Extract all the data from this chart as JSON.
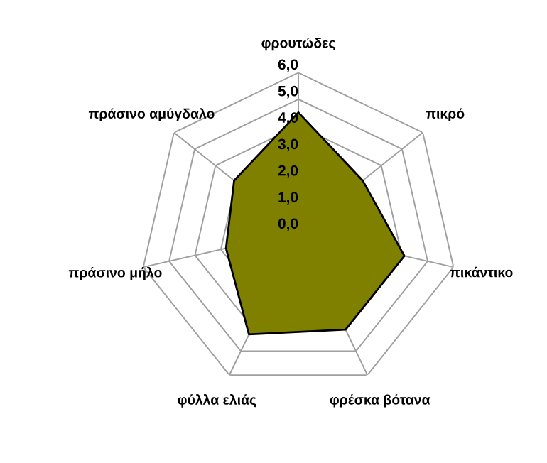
{
  "chart_data": {
    "type": "radar",
    "categories": [
      "φρουτώδες",
      "πικρό",
      "πικάντικο",
      "φρέσκα βότανα",
      "φύλλα ελιάς",
      "πράσινο μήλο",
      "πράσινο αμύγδαλο"
    ],
    "series": [
      {
        "color": "#808000",
        "values": [
          4.5,
          3.1,
          4.1,
          4.1,
          4.3,
          2.8,
          3.1
        ]
      }
    ],
    "ylim": [
      0,
      6
    ],
    "yticks": [
      {
        "value": 0,
        "label": "0,0"
      },
      {
        "value": 1,
        "label": "1,0"
      },
      {
        "value": 2,
        "label": "2,0"
      },
      {
        "value": 3,
        "label": "3,0"
      },
      {
        "value": 4,
        "label": "4,0"
      },
      {
        "value": 5,
        "label": "5,0"
      },
      {
        "value": 6,
        "label": "6,0"
      }
    ],
    "grid": true
  }
}
